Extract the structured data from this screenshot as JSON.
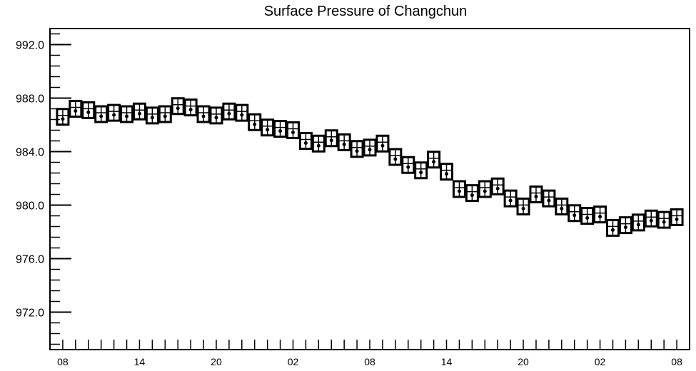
{
  "chart_data": {
    "type": "scatter",
    "title": "Surface Pressure of Changchun",
    "xlabel": "",
    "ylabel": "",
    "ylim": [
      969.2,
      993.2
    ],
    "y_major_ticks": [
      992.0,
      988.0,
      984.0,
      980.0,
      976.0,
      972.0
    ],
    "y_tick_labels": [
      "992.0",
      "988.0",
      "984.0",
      "980.0",
      "976.0",
      "972.0"
    ],
    "x_hours_range": [
      -1,
      49
    ],
    "x_major_ticks": [
      0,
      6,
      12,
      18,
      24,
      30,
      36,
      42,
      48
    ],
    "x_tick_labels": [
      "08",
      "14",
      "20",
      "02",
      "08",
      "14",
      "20",
      "02",
      "08"
    ],
    "grid": false,
    "series": [
      {
        "marker": "station-model-box",
        "x": [
          0,
          1,
          2,
          3,
          4,
          5,
          6,
          7,
          8,
          9,
          10,
          11,
          12,
          13,
          14,
          15,
          16,
          17,
          18,
          19,
          20,
          21,
          22,
          23,
          24,
          25,
          26,
          27,
          28,
          29,
          30,
          31,
          32,
          33,
          34,
          35,
          36,
          37,
          38,
          39,
          40,
          41,
          42,
          43,
          44,
          45,
          46,
          47,
          48
        ],
        "values": [
          986.6,
          987.2,
          987.1,
          986.8,
          986.9,
          986.8,
          987.0,
          986.7,
          986.8,
          987.4,
          987.3,
          986.8,
          986.7,
          987.0,
          986.9,
          986.2,
          985.8,
          985.7,
          985.6,
          984.8,
          984.6,
          985.0,
          984.7,
          984.2,
          984.3,
          984.6,
          983.6,
          983.0,
          982.6,
          983.4,
          982.5,
          981.2,
          980.9,
          981.2,
          981.4,
          980.5,
          979.9,
          980.8,
          980.5,
          979.9,
          979.4,
          979.2,
          979.3,
          978.3,
          978.5,
          978.7,
          979.0,
          978.9,
          979.1
        ]
      }
    ]
  }
}
